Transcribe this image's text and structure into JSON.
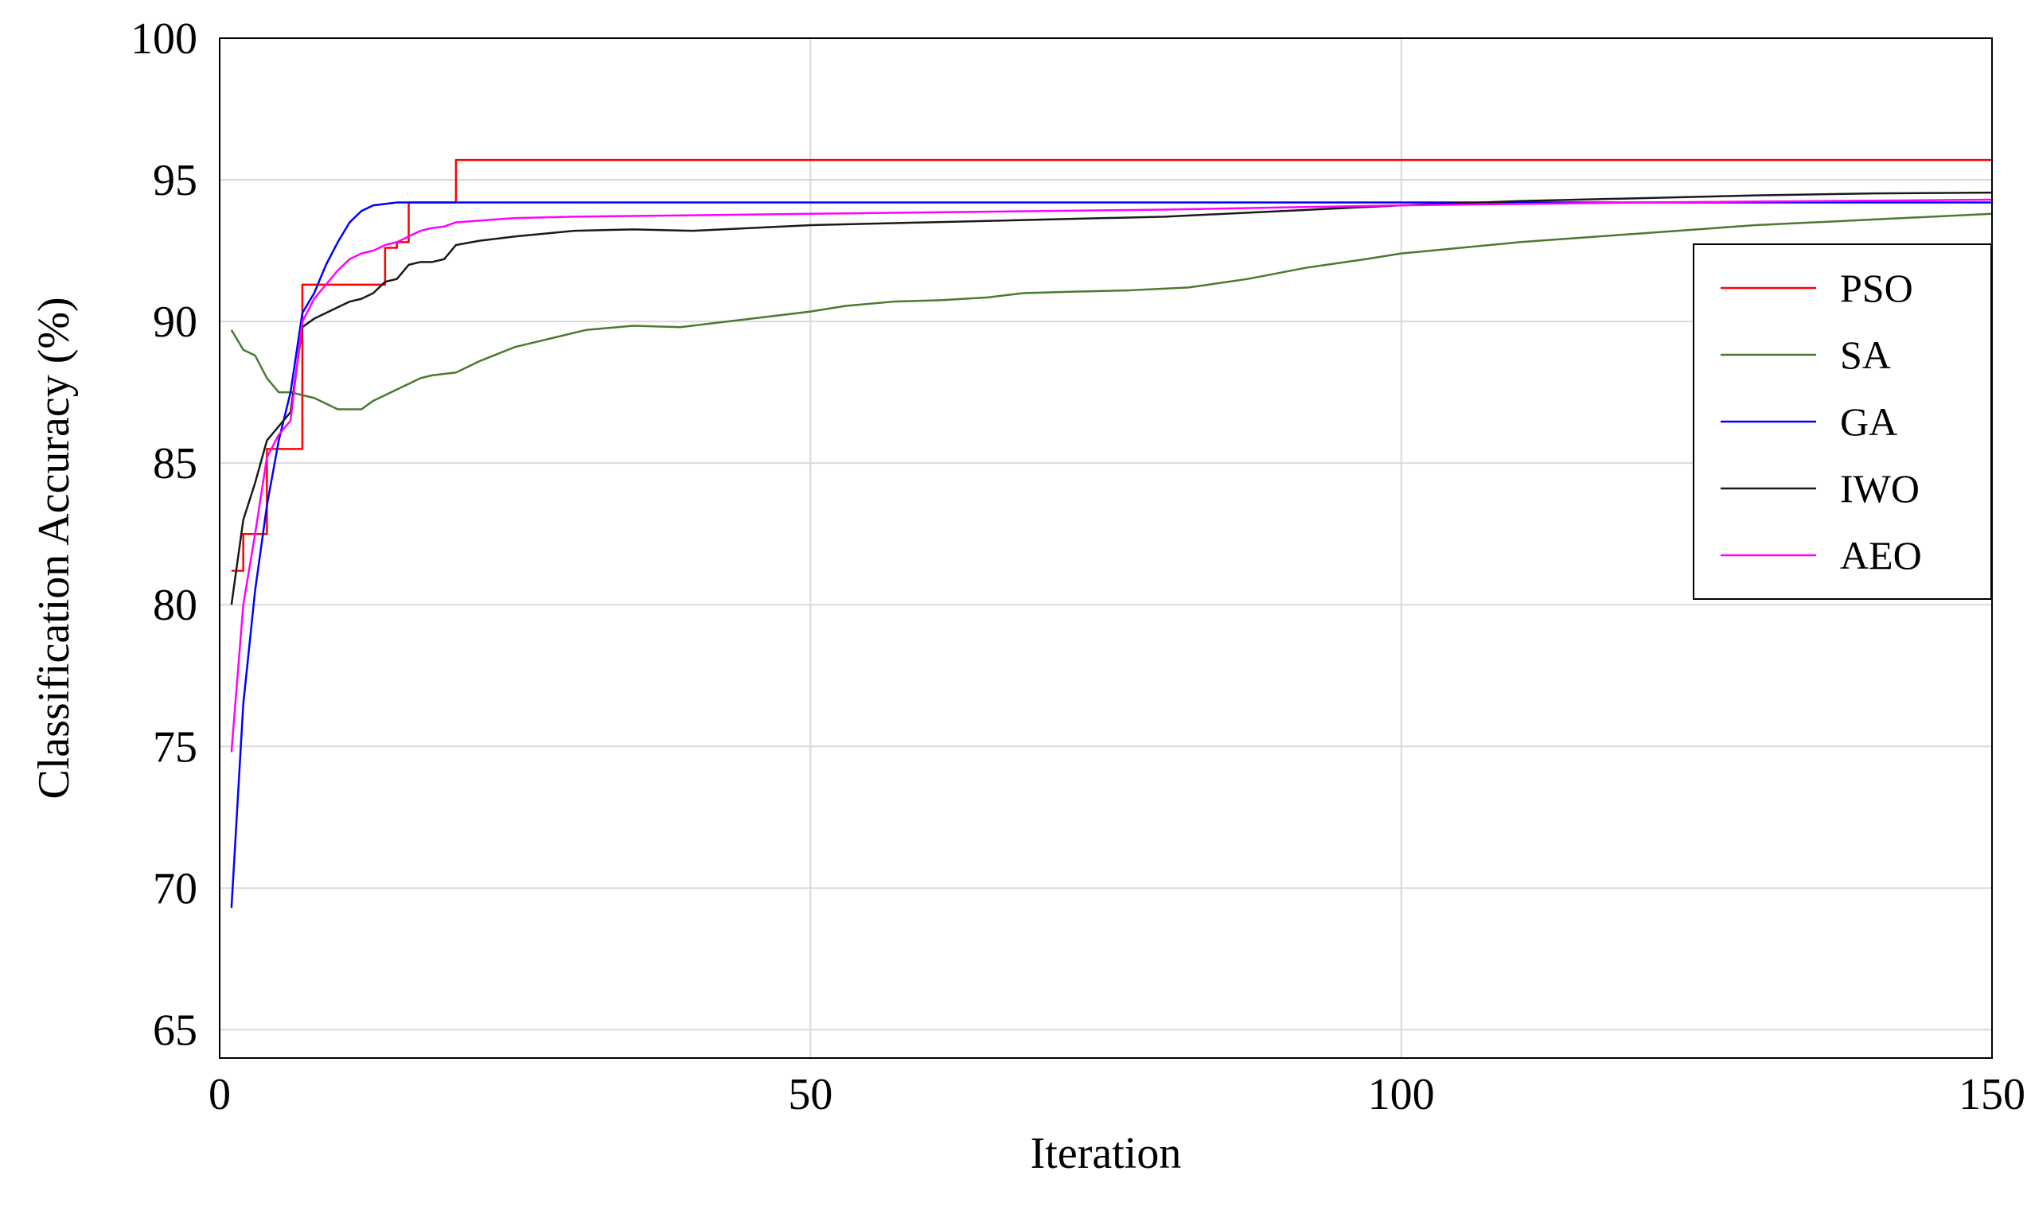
{
  "chart_data": {
    "type": "line",
    "xlabel": "Iteration",
    "ylabel": "Classification Accuracy (%)",
    "xlim": [
      0,
      150
    ],
    "ylim": [
      64,
      100
    ],
    "xticks": [
      0,
      50,
      100,
      150
    ],
    "yticks": [
      65,
      70,
      75,
      80,
      85,
      90,
      95,
      100
    ],
    "grid": true,
    "legend_position": "right",
    "series": [
      {
        "name": "PSO",
        "color": "#ff0000",
        "step": true,
        "points": [
          [
            1,
            81.2
          ],
          [
            2,
            82.5
          ],
          [
            4,
            85.5
          ],
          [
            7,
            91.3
          ],
          [
            13,
            91.3
          ],
          [
            14,
            92.6
          ],
          [
            15,
            92.8
          ],
          [
            16,
            94.2
          ],
          [
            19,
            94.2
          ],
          [
            20,
            95.7
          ],
          [
            150,
            95.7
          ]
        ]
      },
      {
        "name": "SA",
        "color": "#4a7a30",
        "points": [
          [
            1,
            89.7
          ],
          [
            2,
            89.0
          ],
          [
            3,
            88.8
          ],
          [
            4,
            88.0
          ],
          [
            5,
            87.5
          ],
          [
            6,
            87.5
          ],
          [
            7,
            87.4
          ],
          [
            8,
            87.3
          ],
          [
            9,
            87.1
          ],
          [
            10,
            86.9
          ],
          [
            11,
            86.9
          ],
          [
            12,
            86.9
          ],
          [
            13,
            87.2
          ],
          [
            14,
            87.4
          ],
          [
            15,
            87.6
          ],
          [
            16,
            87.8
          ],
          [
            17,
            88.0
          ],
          [
            18,
            88.1
          ],
          [
            20,
            88.2
          ],
          [
            22,
            88.6
          ],
          [
            25,
            89.1
          ],
          [
            28,
            89.4
          ],
          [
            31,
            89.7
          ],
          [
            35,
            89.85
          ],
          [
            39,
            89.8
          ],
          [
            43,
            90.0
          ],
          [
            47,
            90.2
          ],
          [
            50,
            90.35
          ],
          [
            53,
            90.55
          ],
          [
            57,
            90.7
          ],
          [
            61,
            90.75
          ],
          [
            65,
            90.85
          ],
          [
            68,
            91.0
          ],
          [
            72,
            91.05
          ],
          [
            77,
            91.1
          ],
          [
            82,
            91.2
          ],
          [
            87,
            91.5
          ],
          [
            92,
            91.9
          ],
          [
            97,
            92.2
          ],
          [
            100,
            92.4
          ],
          [
            110,
            92.8
          ],
          [
            120,
            93.1
          ],
          [
            130,
            93.4
          ],
          [
            140,
            93.6
          ],
          [
            150,
            93.8
          ]
        ]
      },
      {
        "name": "GA",
        "color": "#0000ff",
        "points": [
          [
            1,
            69.3
          ],
          [
            2,
            76.5
          ],
          [
            3,
            80.5
          ],
          [
            4,
            83.5
          ],
          [
            5,
            85.8
          ],
          [
            6,
            87.5
          ],
          [
            7,
            90.3
          ],
          [
            8,
            91.0
          ],
          [
            9,
            92.0
          ],
          [
            10,
            92.8
          ],
          [
            11,
            93.5
          ],
          [
            12,
            93.9
          ],
          [
            13,
            94.1
          ],
          [
            14,
            94.15
          ],
          [
            15,
            94.2
          ],
          [
            20,
            94.2
          ],
          [
            50,
            94.2
          ],
          [
            100,
            94.2
          ],
          [
            150,
            94.2
          ]
        ]
      },
      {
        "name": "IWO",
        "color": "#1a1a1a",
        "points": [
          [
            1,
            80.0
          ],
          [
            2,
            83.0
          ],
          [
            3,
            84.3
          ],
          [
            4,
            85.8
          ],
          [
            5,
            86.3
          ],
          [
            6,
            86.8
          ],
          [
            7,
            89.8
          ],
          [
            8,
            90.1
          ],
          [
            9,
            90.3
          ],
          [
            10,
            90.5
          ],
          [
            11,
            90.7
          ],
          [
            12,
            90.8
          ],
          [
            13,
            91.0
          ],
          [
            14,
            91.4
          ],
          [
            15,
            91.5
          ],
          [
            16,
            92.0
          ],
          [
            17,
            92.1
          ],
          [
            18,
            92.1
          ],
          [
            19,
            92.2
          ],
          [
            20,
            92.7
          ],
          [
            22,
            92.85
          ],
          [
            25,
            93.0
          ],
          [
            30,
            93.2
          ],
          [
            35,
            93.25
          ],
          [
            40,
            93.2
          ],
          [
            50,
            93.4
          ],
          [
            60,
            93.5
          ],
          [
            70,
            93.6
          ],
          [
            80,
            93.7
          ],
          [
            90,
            93.9
          ],
          [
            100,
            94.1
          ],
          [
            110,
            94.25
          ],
          [
            120,
            94.35
          ],
          [
            130,
            94.45
          ],
          [
            140,
            94.52
          ],
          [
            150,
            94.55
          ]
        ]
      },
      {
        "name": "AEO",
        "color": "#ff00ff",
        "points": [
          [
            1,
            74.8
          ],
          [
            2,
            80.0
          ],
          [
            3,
            82.5
          ],
          [
            4,
            85.2
          ],
          [
            5,
            86.0
          ],
          [
            6,
            86.5
          ],
          [
            7,
            90.0
          ],
          [
            8,
            90.8
          ],
          [
            9,
            91.3
          ],
          [
            10,
            91.8
          ],
          [
            11,
            92.2
          ],
          [
            12,
            92.4
          ],
          [
            13,
            92.5
          ],
          [
            14,
            92.7
          ],
          [
            15,
            92.8
          ],
          [
            16,
            93.0
          ],
          [
            17,
            93.2
          ],
          [
            18,
            93.3
          ],
          [
            19,
            93.35
          ],
          [
            20,
            93.5
          ],
          [
            25,
            93.65
          ],
          [
            30,
            93.7
          ],
          [
            40,
            93.75
          ],
          [
            50,
            93.8
          ],
          [
            60,
            93.85
          ],
          [
            80,
            93.95
          ],
          [
            100,
            94.1
          ],
          [
            120,
            94.2
          ],
          [
            150,
            94.3
          ]
        ]
      }
    ]
  }
}
